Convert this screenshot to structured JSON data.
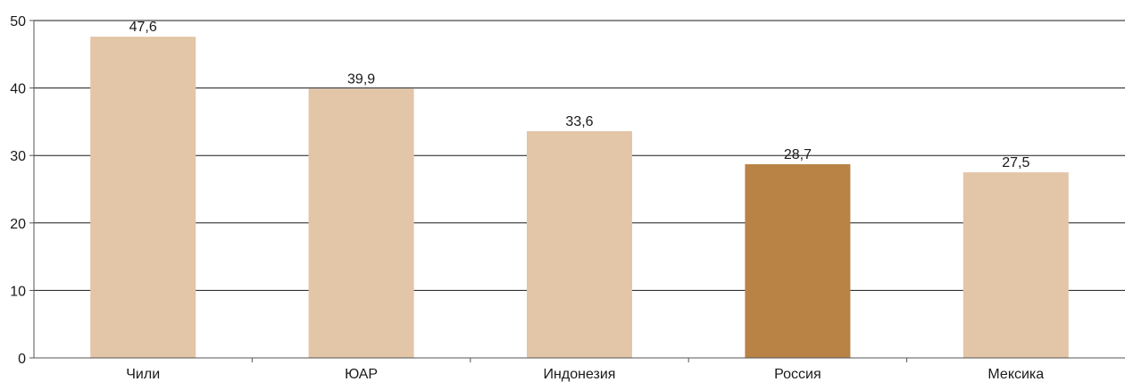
{
  "chart_data": {
    "type": "bar",
    "categories": [
      "Чили",
      "ЮАР",
      "Индонезия",
      "Россия",
      "Мексика"
    ],
    "values": [
      47.6,
      39.9,
      33.6,
      28.7,
      27.5
    ],
    "value_labels": [
      "47,6",
      "39,9",
      "33,6",
      "28,7",
      "27,5"
    ],
    "highlighted_category": "Россия",
    "ylim": [
      0,
      50
    ],
    "yticks": [
      0,
      10,
      20,
      30,
      40,
      50
    ],
    "ytick_labels": [
      "0",
      "10",
      "20",
      "30",
      "40",
      "50"
    ],
    "grid": true,
    "legend": "none",
    "colors": {
      "bar": "#e3c5a7",
      "bar_highlight": "#b98345",
      "grid": "#1a1a1a",
      "axis": "#555555",
      "text": "#1a1a1a"
    }
  }
}
